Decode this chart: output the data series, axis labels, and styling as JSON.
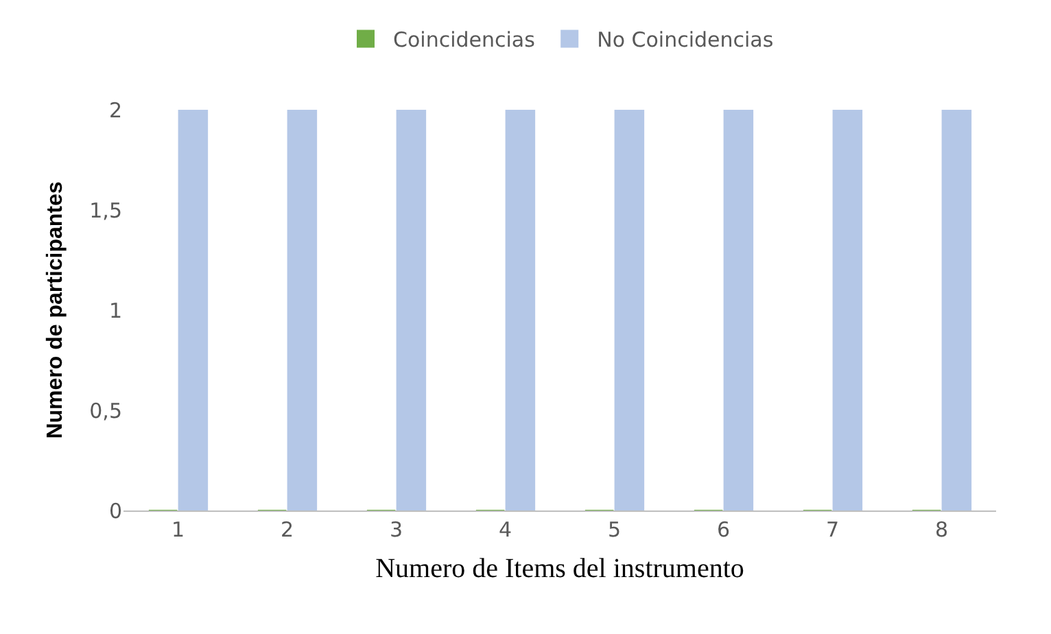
{
  "chart_data": {
    "type": "bar",
    "xlabel": "Numero de Items del instrumento",
    "ylabel": "Numero de participantes",
    "categories": [
      "1",
      "2",
      "3",
      "4",
      "5",
      "6",
      "7",
      "8"
    ],
    "series": [
      {
        "name": "Coincidencias",
        "color": "#70ad47",
        "values": [
          0,
          0,
          0,
          0,
          0,
          0,
          0,
          0
        ]
      },
      {
        "name": "No Coincidencias",
        "color": "#b4c7e7",
        "values": [
          2,
          2,
          2,
          2,
          2,
          2,
          2,
          2
        ]
      }
    ],
    "ylim": [
      0,
      2
    ],
    "yticks": [
      0,
      {
        "value": 0.5,
        "label": "0,5"
      },
      1,
      {
        "value": 1.5,
        "label": "1,5"
      },
      2
    ],
    "legend": "top"
  }
}
